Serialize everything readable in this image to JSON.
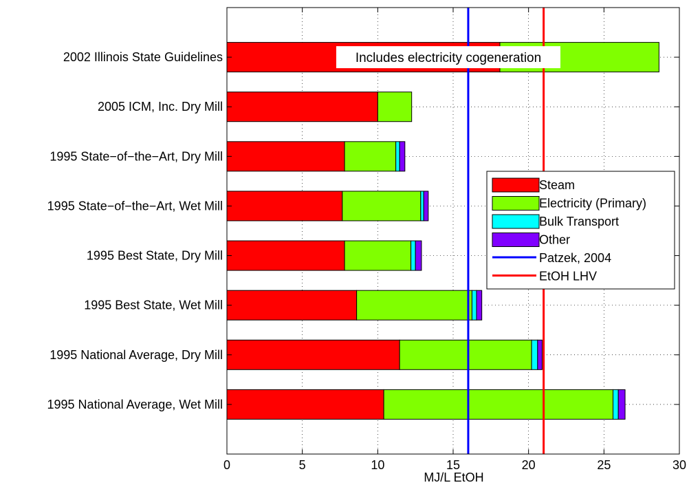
{
  "chart_data": {
    "type": "bar",
    "orientation": "horizontal",
    "stacked": true,
    "xlabel": "MJ/L EtOH",
    "ylabel": "",
    "title": "",
    "xlim": [
      0,
      30
    ],
    "xticks": [
      0,
      5,
      10,
      15,
      20,
      25,
      30
    ],
    "grid": true,
    "legend_position": "right",
    "categories": [
      "2002 Illinois State Guidelines",
      "2005 ICM, Inc. Dry Mill",
      "1995 State−of−the−Art, Dry Mill",
      "1995 State−of−the−Art, Wet Mill",
      "1995 Best State, Dry Mill",
      "1995 Best State, Wet Mill",
      "1995 National Average, Dry Mill",
      "1995 National Average, Wet Mill"
    ],
    "series": [
      {
        "name": "Steam",
        "color": "#ff0000",
        "values": [
          18.1,
          10.0,
          7.8,
          7.65,
          7.8,
          8.6,
          11.45,
          10.4
        ]
      },
      {
        "name": "Electricity (Primary)",
        "color": "#80ff00",
        "values": [
          10.55,
          2.25,
          3.4,
          5.2,
          4.4,
          7.65,
          8.75,
          15.2
        ]
      },
      {
        "name": "Bulk Transport",
        "color": "#00ffff",
        "values": [
          0,
          0,
          0.25,
          0.2,
          0.3,
          0.3,
          0.4,
          0.35
        ]
      },
      {
        "name": "Other",
        "color": "#8000ff",
        "values": [
          0,
          0,
          0.35,
          0.3,
          0.4,
          0.35,
          0.3,
          0.45
        ]
      }
    ],
    "reference_lines": [
      {
        "name": "Patzek, 2004",
        "color": "#0000ff",
        "x": 16.0
      },
      {
        "name": "EtOH LHV",
        "color": "#ff0000",
        "x": 21.0
      }
    ],
    "annotations": [
      {
        "text": "Includes electricity cogeneration",
        "category_index": 0,
        "x": 18.0
      }
    ]
  }
}
